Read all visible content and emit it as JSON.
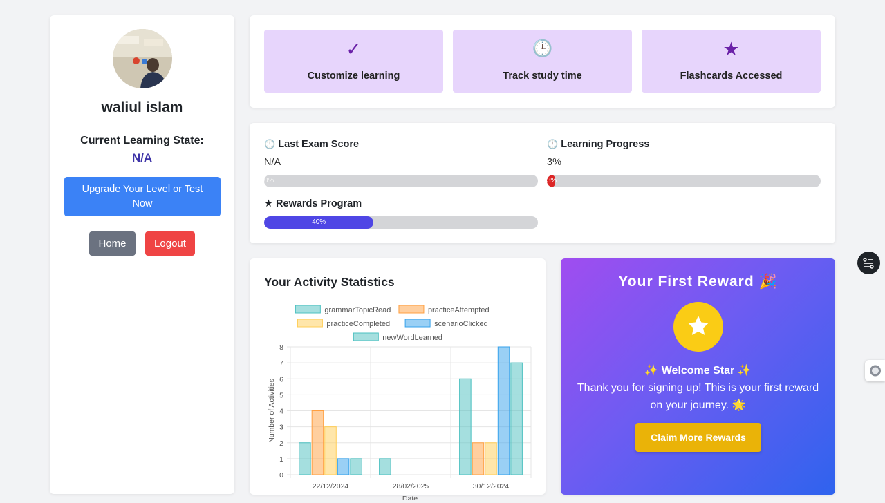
{
  "profile": {
    "name": "waliul islam",
    "state_label": "Current Learning State:",
    "state_value": "N/A",
    "upgrade_label": "Upgrade Your Level or Test Now",
    "home_label": "Home",
    "logout_label": "Logout"
  },
  "features": [
    {
      "icon": "check-icon",
      "glyph": "✓",
      "label": "Customize learning"
    },
    {
      "icon": "clock-icon",
      "glyph": "🕒",
      "label": "Track study time"
    },
    {
      "icon": "star-icon",
      "glyph": "★",
      "label": "Flashcards Accessed"
    }
  ],
  "progress": {
    "last_exam": {
      "icon": "clock-icon",
      "glyph": "🕒",
      "label": "Last Exam Score",
      "value": "N/A",
      "bar_text": "0%",
      "fraction": 0
    },
    "learning": {
      "icon": "clock-icon",
      "glyph": "🕒",
      "label": "Learning Progress",
      "value": "3%",
      "bar_text": "3%",
      "fraction": 0.03
    },
    "rewards": {
      "icon": "star-icon",
      "glyph": "★",
      "label": "Rewards Program",
      "bar_text": "40%",
      "fraction": 0.4
    }
  },
  "colors": {
    "last_exam_fill": "#d4d5d8",
    "learning_fill": "#dc2626",
    "rewards_fill": "#4f46e5"
  },
  "stats": {
    "title": "Your Activity Statistics"
  },
  "chart_data": {
    "type": "bar",
    "categories": [
      "22/12/2024",
      "28/02/2025",
      "30/12/2024"
    ],
    "series": [
      {
        "name": "grammarTopicRead",
        "values": [
          2,
          1,
          6
        ],
        "color": "#4bc0c0"
      },
      {
        "name": "practiceAttempted",
        "values": [
          4,
          0,
          2
        ],
        "color": "#ff9f40"
      },
      {
        "name": "practiceCompleted",
        "values": [
          3,
          0,
          2
        ],
        "color": "#ffcd56"
      },
      {
        "name": "scenarioClicked",
        "values": [
          1,
          0,
          8
        ],
        "color": "#36a2eb"
      },
      {
        "name": "newWordLearned",
        "values": [
          1,
          0,
          7
        ],
        "color": "#4bc0c0"
      }
    ],
    "xlabel": "Date",
    "ylabel": "Number of Activities",
    "ylim": [
      0,
      8
    ],
    "yticks": [
      0,
      1,
      2,
      3,
      4,
      5,
      6,
      7,
      8
    ],
    "grid": true,
    "legend": "top"
  },
  "reward": {
    "title": "Your First Reward 🎉",
    "name": "✨ Welcome Star ✨",
    "message": "Thank you for signing up! This is your first reward on your journey. 🌟",
    "claim_label": "Claim More Rewards"
  }
}
